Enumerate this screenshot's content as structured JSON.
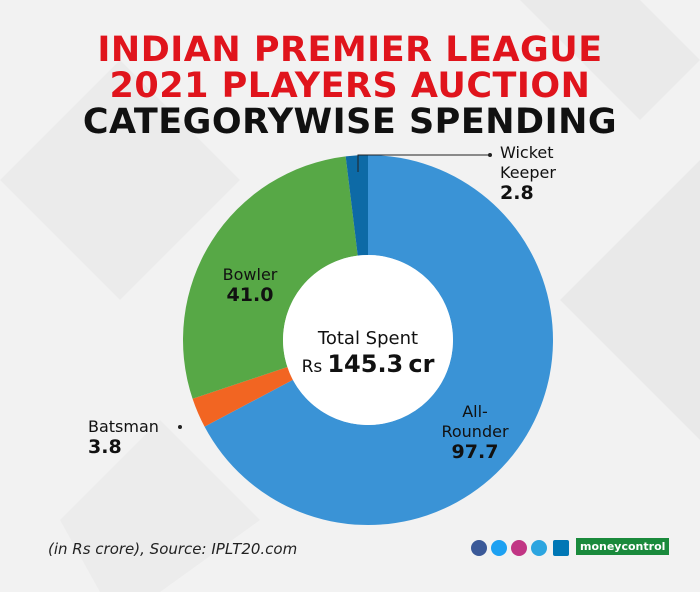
{
  "chart_data": {
    "type": "donut",
    "title_lines": [
      "INDIAN PREMIER LEAGUE",
      "2021 PLAYERS AUCTION",
      "CATEGORYWISE SPENDING"
    ],
    "categories": [
      "All-Rounder",
      "Batsman",
      "Bowler",
      "Wicket Keeper"
    ],
    "values": [
      97.7,
      3.8,
      41.0,
      2.8
    ],
    "value_labels": [
      "97.7",
      "3.8",
      "41.0",
      "2.8"
    ],
    "colors": [
      "#3a93d6",
      "#f26522",
      "#57a846",
      "#0d6aa6"
    ],
    "center": {
      "label": "Total Spent",
      "prefix": "Rs",
      "value": 145.3,
      "unit": "cr"
    },
    "source": "(in Rs crore), Source: IPLT20.com",
    "brand": "moneycontrol"
  }
}
